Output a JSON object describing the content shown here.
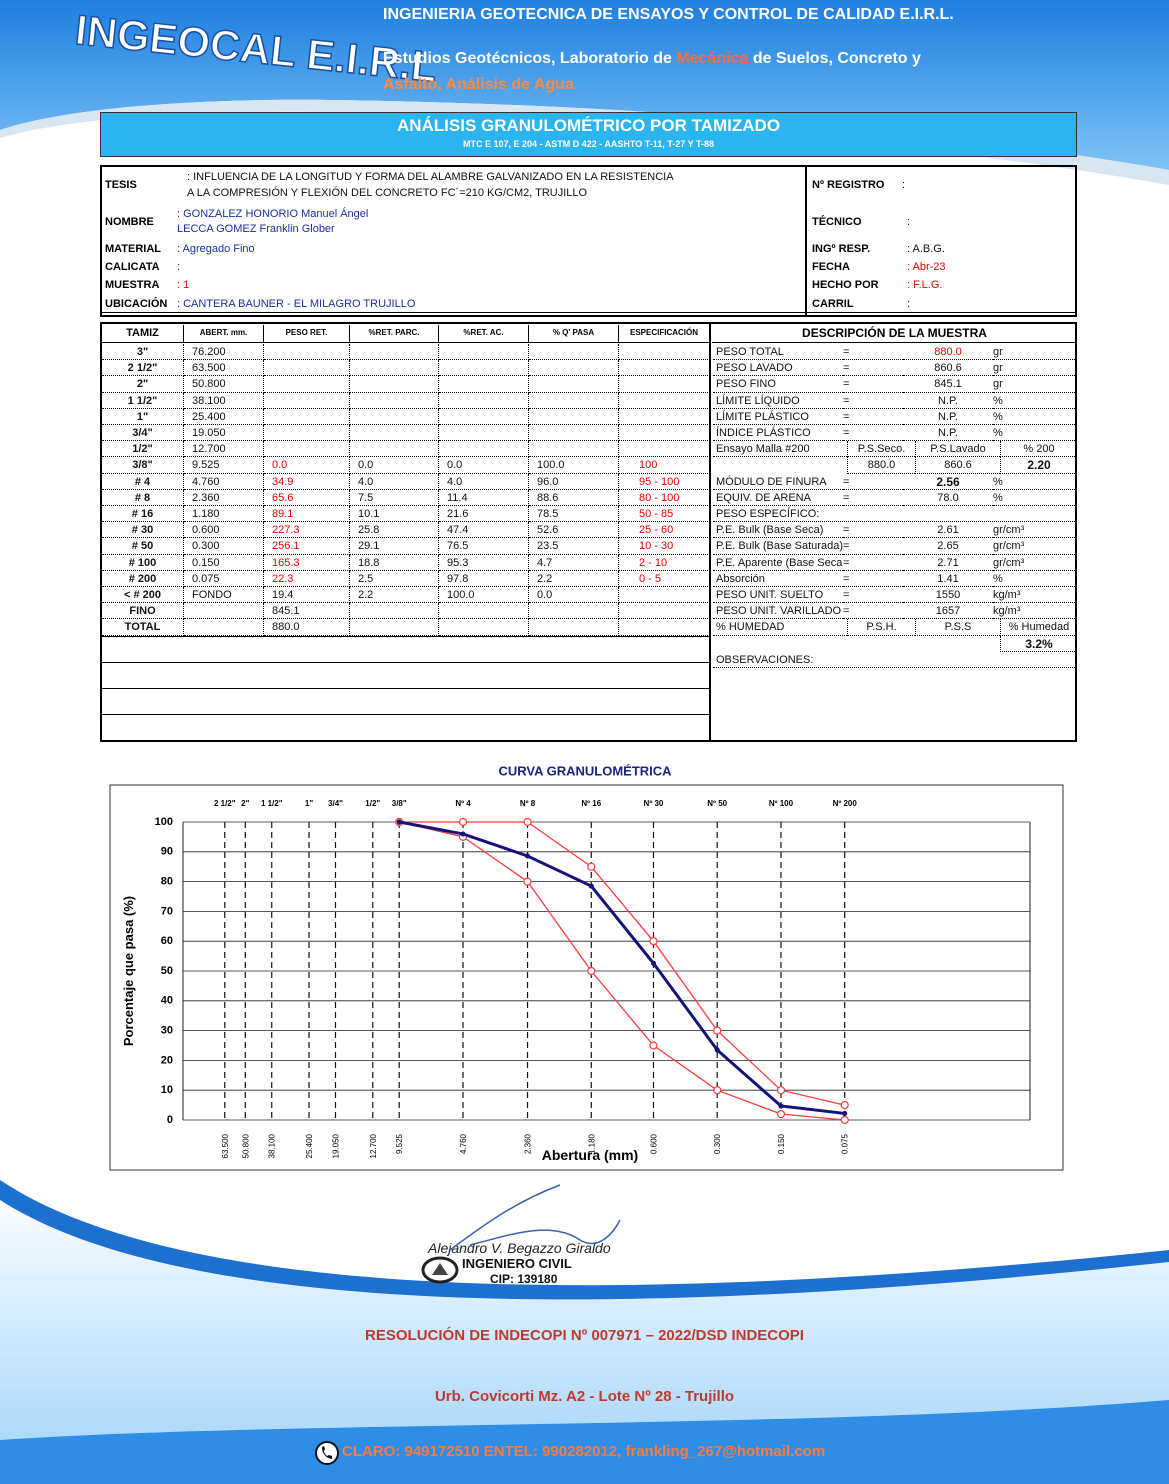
{
  "header": {
    "logo": "INGEOCAL E.I.R.L",
    "company": "INGENIERIA GEOTECNICA DE ENSAYOS Y CONTROL DE CALIDAD E.I.R.L.",
    "tagline": [
      "Estudios Geotécnicos, Laboratorio de ",
      "Mecánica",
      " de Suelos, Concreto y"
    ],
    "tagline2": "Asfalto, Análisis de Agua"
  },
  "title": "ANÁLISIS GRANULOMÉTRICO POR TAMIZADO",
  "subtitle": "MTC E 107, E 204 - ASTM D 422 - AASHTO T-11, T-27 Y T-88",
  "info": {
    "left": [
      {
        "label": "TESIS",
        "value": [
          ": INFLUENCIA DE LA LONGITUD Y FORMA DEL ALAMBRE GALVANIZADO EN LA RESISTENCIA",
          "  A LA COMPRESIÓN Y FLEXIÓN DEL CONCRETO FC´=210 KG/CM2, TRUJILLO"
        ]
      },
      {
        "label": "NOMBRE",
        "value": [
          ": GONZALEZ HONORIO Manuel Ángel",
          "  LECCA GOMEZ Franklin Glober"
        ]
      },
      {
        "label": "MATERIAL",
        "value": [
          ": Agregado Fino"
        ]
      },
      {
        "label": "CALICATA",
        "value": [
          ":"
        ]
      },
      {
        "label": "MUESTRA",
        "value": [
          ": 1"
        ]
      },
      {
        "label": "UBICACIÓN",
        "value": [
          ": CANTERA BAUNER - EL MILAGRO TRUJILLO"
        ]
      }
    ],
    "right": [
      {
        "label": "Nº REGISTRO",
        "value": ":"
      },
      {
        "label": "TÉCNICO",
        "value": ":"
      },
      {
        "label": "INGº RESP.",
        "value": ": A.B.G."
      },
      {
        "label": "FECHA",
        "value": ": Abr-23"
      },
      {
        "label": "HECHO POR",
        "value": ": F.L.G."
      },
      {
        "label": "CARRIL",
        "value": ":"
      }
    ]
  },
  "table": {
    "columns": [
      "TAMIZ",
      "ABERT. mm.",
      "PESO RET.",
      "%RET. PARC.",
      "%RET. AC.",
      "% Q' PASA",
      "ESPECIFICACIÓN"
    ],
    "rows": [
      [
        "3\"",
        "76.200",
        null,
        null,
        null,
        null,
        null
      ],
      [
        "2 1/2\"",
        "63.500",
        null,
        null,
        null,
        null,
        null
      ],
      [
        "2\"",
        "50.800",
        null,
        null,
        null,
        null,
        null
      ],
      [
        "1 1/2\"",
        "38.100",
        null,
        null,
        null,
        null,
        null
      ],
      [
        "1\"",
        "25.400",
        null,
        null,
        null,
        null,
        null
      ],
      [
        "3/4\"",
        "19.050",
        null,
        null,
        null,
        null,
        null
      ],
      [
        "1/2\"",
        "12.700",
        null,
        null,
        null,
        null,
        null
      ],
      [
        "3/8\"",
        "9.525",
        "0.0",
        "0.0",
        "0.0",
        "100.0",
        "100"
      ],
      [
        "# 4",
        "4.760",
        "34.9",
        "4.0",
        "4.0",
        "96.0",
        "95 - 100"
      ],
      [
        "# 8",
        "2.360",
        "65.6",
        "7.5",
        "11.4",
        "88.6",
        "80 - 100"
      ],
      [
        "# 16",
        "1.180",
        "89.1",
        "10.1",
        "21.6",
        "78.5",
        "50 - 85"
      ],
      [
        "# 30",
        "0.600",
        "227.3",
        "25.8",
        "47.4",
        "52.6",
        "25 - 60"
      ],
      [
        "# 50",
        "0.300",
        "256.1",
        "29.1",
        "76.5",
        "23.5",
        "10 - 30"
      ],
      [
        "# 100",
        "0.150",
        "165.3",
        "18.8",
        "95.3",
        "4.7",
        "2 - 10"
      ],
      [
        "# 200",
        "0.075",
        "22.3",
        "2.5",
        "97.8",
        "2.2",
        "0 - 5"
      ],
      [
        "< # 200",
        "FONDO",
        "19.4",
        "2.2",
        "100.0",
        "0.0",
        null
      ],
      [
        "FINO",
        null,
        "845.1",
        null,
        null,
        null,
        null
      ],
      [
        "TOTAL",
        null,
        "880.0",
        null,
        null,
        null,
        null
      ]
    ]
  },
  "description": {
    "title": "DESCRIPCIÓN DE LA MUESTRA",
    "rows": [
      [
        "PESO TOTAL",
        "=",
        "880.0",
        "gr"
      ],
      [
        "PESO LAVADO",
        "=",
        "860.6",
        "gr"
      ],
      [
        "PESO FINO",
        "=",
        "845.1",
        "gr"
      ],
      [
        "LÍMITE LÍQUIDO",
        "=",
        "N.P.",
        "%"
      ],
      [
        "LÍMITE PLÁSTICO",
        "=",
        "N.P.",
        "%"
      ],
      [
        "ÍNDICE PLÁSTICO",
        "=",
        "N.P.",
        "%"
      ],
      [
        "Ensayo Malla #200",
        "P.S.Seco.",
        "P.S.Lavado",
        "% 200"
      ],
      [
        null,
        "880.0",
        "860.6",
        "2.20"
      ],
      [
        "MÓDULO DE FINURA",
        "=",
        "2.56",
        "%"
      ],
      [
        "EQUIV. DE ARENA",
        "=",
        "78.0",
        "%"
      ],
      [
        "PESO ESPECÍFICO:"
      ],
      [
        "P.E. Bulk (Base Seca)",
        "=",
        "2.61",
        "gr/cm³"
      ],
      [
        "P.E. Bulk (Base Saturada)",
        "=",
        "2.65",
        "gr/cm³"
      ],
      [
        "P.E. Aparente (Base Seca)",
        "=",
        "2.71",
        "gr/cm³"
      ],
      [
        "Absorción",
        "=",
        "1.41",
        "%"
      ],
      [
        "PESO UNIT. SUELTO",
        "=",
        "1550",
        "kg/m³"
      ],
      [
        "PESO UNIT. VARILLADO",
        "=",
        "1657",
        "kg/m³"
      ],
      [
        "% HUMEDAD",
        "P.S.H.",
        "P.S.S",
        "% Humedad"
      ],
      [
        null,
        null,
        null,
        "3.2%"
      ],
      [
        "OBSERVACIONES:"
      ]
    ]
  },
  "chart": {
    "type": "line",
    "title": "CURVA GRANULOMÉTRICA",
    "x_label": "Abertura (mm)",
    "y_label": "Porcentaje que pasa (%)",
    "log_x": true,
    "xlim": [
      100,
      0.01
    ],
    "ylim": [
      0,
      100
    ],
    "yticks": [
      0,
      10,
      20,
      30,
      40,
      50,
      60,
      70,
      80,
      90,
      100
    ],
    "xticks": [
      {
        "value": 63.5,
        "label": "63.500"
      },
      {
        "value": 50.8,
        "label": "50.800"
      },
      {
        "value": 38.1,
        "label": "38.100"
      },
      {
        "value": 25.4,
        "label": "25.400"
      },
      {
        "value": 19.05,
        "label": "19.050"
      },
      {
        "value": 12.7,
        "label": "12.700"
      },
      9.525,
      {
        "value": 4.76,
        "label": "4.760"
      },
      {
        "value": 2.36,
        "label": "2.360"
      },
      {
        "value": 1.18,
        "label": "1.180"
      },
      {
        "value": 0.6,
        "label": "0.600"
      },
      {
        "value": 0.3,
        "label": "0.300"
      },
      {
        "value": 0.15,
        "label": "0.150"
      },
      0.075
    ],
    "sieve_labels": [
      "2 1/2\"",
      "2\"",
      "1 1/2\"",
      "1\"",
      "3/4\"",
      "1/2\"",
      "3/8\"",
      "Nº 4",
      "Nº 8",
      "Nº 16",
      "Nº 30",
      "Nº 50",
      "Nº 100",
      "Nº 200"
    ],
    "series": [
      {
        "color": "#ff3b3b",
        "x": [
          9.525,
          4.76,
          2.36,
          1.18,
          0.6,
          0.3,
          0.15,
          0.075
        ],
        "values": [
          100,
          100,
          100,
          85,
          60,
          30,
          10,
          5
        ]
      },
      {
        "color": "#ff3b3b",
        "x": [
          9.525,
          4.76,
          2.36,
          1.18,
          0.6,
          0.3,
          0.15,
          0.075
        ],
        "values": [
          100,
          95,
          80,
          50,
          25,
          10,
          2,
          0
        ]
      },
      {
        "color": "#141478",
        "x": [
          9.525,
          4.76,
          2.36,
          1.18,
          0.6,
          0.3,
          0.15,
          0.075
        ],
        "values": [
          100,
          96.0,
          88.6,
          78.5,
          52.6,
          23.5,
          4.7,
          2.2
        ]
      }
    ]
  },
  "footer": {
    "signature": "Alejandro V. Begazzo Giraldo",
    "profession": "INGENIERO CIVIL",
    "cip": "CIP: 139180",
    "resolution": "RESOLUCIÓN DE INDECOPI Nº 007971 – 2022/DSD INDECOPI",
    "address": "Urb. Covicorti Mz. A2 - Lote Nº 28 - Trujillo",
    "contact": "CLARO: 949172510 ENTEL: 990282012, frankling_267@hotmail.com"
  }
}
